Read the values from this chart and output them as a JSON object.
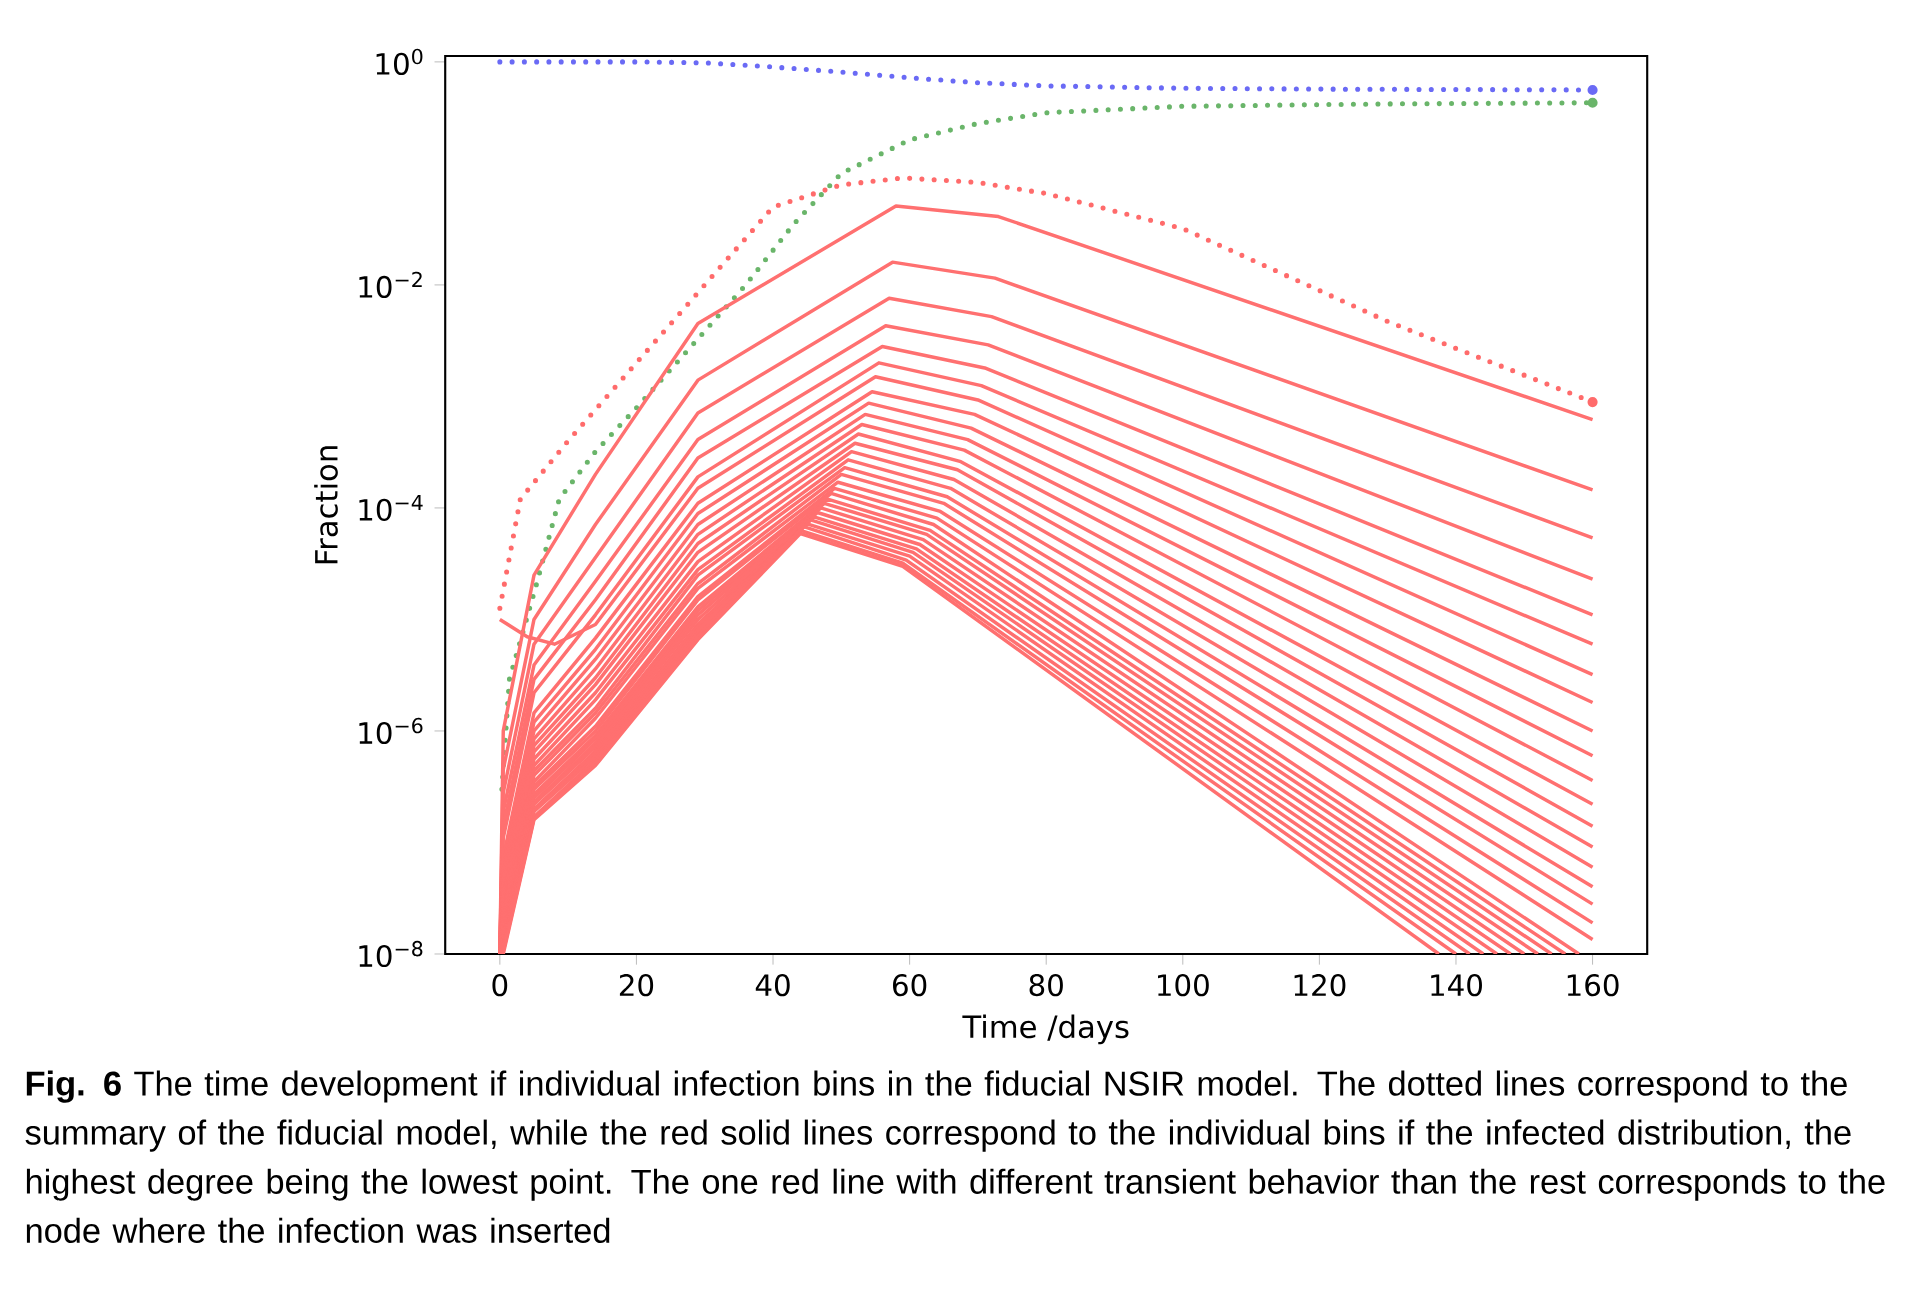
{
  "chart_data": {
    "type": "line",
    "xlabel": "Time /days",
    "ylabel": "Fraction",
    "log": "y",
    "xlim": [
      -8,
      168
    ],
    "ylim": [
      1e-08,
      1.13
    ],
    "xticks": [
      0,
      20,
      40,
      60,
      80,
      100,
      120,
      140,
      160
    ],
    "yticks": [
      {
        "value": 1e-08,
        "label": "10$^{−8}$"
      },
      {
        "value": 1e-06,
        "label": "10$^{−6}$"
      },
      {
        "value": 0.0001,
        "label": "10$^{−4}$"
      },
      {
        "value": 0.01,
        "label": "10$^{−2}$"
      },
      {
        "value": 1,
        "label": "10$^{0}$"
      }
    ],
    "annotations": [
      "**Fig. 6** The time development if individual infection bins in the fiducial NSIR model. The dotted lines correspond to the summary of the fiducial model, while the red solid lines correspond to the individual bins if the infected distribution, the highest degree being the lowest point. The one red line with different transient behavior than the rest corresponds to the node where the infection was inserted"
    ],
    "series": [
      {
        "color": "#6a6af5",
        "line_style": "dotted",
        "x": [
          0,
          20,
          30,
          40,
          50,
          60,
          70,
          80,
          100,
          120,
          160
        ],
        "values": [
          1,
          1,
          0.98,
          0.9,
          0.81,
          0.72,
          0.65,
          0.61,
          0.58,
          0.57,
          0.56
        ]
      },
      {
        "color": "#6ab56a",
        "line_style": "dotted",
        "x": [
          0.3,
          1.4,
          5.3,
          8.7,
          14,
          20,
          28,
          36,
          43,
          50,
          60,
          70,
          80,
          100,
          130,
          160
        ],
        "values": [
          3e-07,
          2.9e-06,
          2e-05,
          0.00012,
          0.00032,
          0.00079,
          0.0028,
          0.01,
          0.035,
          0.1,
          0.2,
          0.28,
          0.35,
          0.4,
          0.42,
          0.43
        ]
      },
      {
        "color": "#ff6b6b",
        "line_style": "dotted",
        "x": [
          0,
          3,
          10,
          20,
          30,
          40,
          50,
          59,
          70,
          80,
          100,
          130,
          160
        ],
        "values": [
          1.26e-05,
          0.00012,
          0.0004,
          0.002,
          0.01,
          0.05,
          0.079,
          0.091,
          0.083,
          0.066,
          0.032,
          0.0047,
          0.00089
        ]
      },
      {
        "color": "#ff7070",
        "line_style": "solid",
        "x": [
          0,
          0.5,
          5,
          14,
          29,
          58,
          73,
          160
        ],
        "values": [
          1e-08,
          1e-06,
          2.5e-05,
          0.0002,
          0.0045,
          0.051,
          0.041,
          0.00062
        ]
      },
      {
        "color": "#ff7070",
        "line_style": "solid",
        "x": [
          0,
          0.5,
          5,
          14,
          29,
          57.5,
          72.5,
          160
        ],
        "values": [
          1e-08,
          4.5e-07,
          1e-05,
          7.1e-05,
          0.0014,
          0.016,
          0.0115,
          0.000145
        ]
      },
      {
        "color": "#ff7070",
        "line_style": "solid",
        "x": [
          0,
          0.5,
          5,
          14,
          29,
          57,
          72,
          160
        ],
        "values": [
          1e-08,
          2.8e-07,
          6e-06,
          3.6e-05,
          0.00071,
          0.0076,
          0.0052,
          5.4e-05
        ]
      },
      {
        "color": "#ff7070",
        "line_style": "solid",
        "x": [
          0,
          0.5,
          5,
          14,
          29,
          56.5,
          71.5,
          160
        ],
        "values": [
          1e-08,
          1.9e-07,
          3.9e-06,
          2.2e-05,
          0.00041,
          0.0043,
          0.0029,
          2.3e-05
        ]
      },
      {
        "color": "#ff7070",
        "line_style": "solid",
        "x": [
          0,
          0.5,
          5,
          14,
          29,
          56,
          71,
          160
        ],
        "values": [
          1e-08,
          1.4e-07,
          2.9e-06,
          1.5e-05,
          0.00028,
          0.0028,
          0.0018,
          1.1e-05
        ]
      },
      {
        "color": "#ff7070",
        "line_style": "solid",
        "x": [
          0,
          0.5,
          5,
          14,
          29,
          55.5,
          70.5,
          160
        ],
        "values": [
          1e-08,
          1.1e-07,
          2.2e-06,
          1.1e-05,
          0.00019,
          0.002,
          0.00125,
          6e-06
        ]
      },
      {
        "color": "#ff7070",
        "line_style": "solid",
        "x": [
          0,
          4,
          8,
          14,
          29,
          55,
          70,
          160
        ],
        "values": [
          1e-05,
          7e-06,
          6e-06,
          9e-06,
          0.00015,
          0.0015,
          0.00093,
          3.2e-06
        ]
      },
      {
        "color": "#ff7070",
        "line_style": "solid",
        "x": [
          0,
          0.5,
          5,
          14,
          29,
          54.5,
          69.5,
          160
        ],
        "values": [
          1e-08,
          7.4e-08,
          1.45e-06,
          6.8e-06,
          0.00011,
          0.0011,
          0.00069,
          1.8e-06
        ]
      },
      {
        "color": "#ff7070",
        "line_style": "solid",
        "x": [
          0,
          0.5,
          5,
          14,
          29,
          54,
          69,
          160
        ],
        "values": [
          1e-08,
          6.3e-08,
          1.2e-06,
          5.4e-06,
          8.9e-05,
          0.00087,
          0.00052,
          1e-06
        ]
      },
      {
        "color": "#ff7070",
        "line_style": "solid",
        "x": [
          0,
          0.5,
          5,
          14,
          29,
          53.5,
          68.5,
          160
        ],
        "values": [
          1e-08,
          5.4e-08,
          1e-06,
          4.4e-06,
          7.1e-05,
          0.00069,
          0.00041,
          6e-07
        ]
      },
      {
        "color": "#ff7070",
        "line_style": "solid",
        "x": [
          0,
          0.5,
          5,
          14,
          29,
          53,
          68,
          160
        ],
        "values": [
          1e-08,
          4.7e-08,
          8.5e-07,
          3.6e-06,
          5.8e-05,
          0.00056,
          0.00033,
          3.6e-07
        ]
      },
      {
        "color": "#ff7070",
        "line_style": "solid",
        "x": [
          0,
          0.5,
          5,
          14,
          29,
          52.5,
          67.5,
          160
        ],
        "values": [
          1e-08,
          4.1e-08,
          7.4e-07,
          3e-06,
          4.8e-05,
          0.00046,
          0.00026,
          2.2e-07
        ]
      },
      {
        "color": "#ff7070",
        "line_style": "solid",
        "x": [
          0,
          0.5,
          5,
          14,
          29,
          52,
          67,
          160
        ],
        "values": [
          1e-08,
          3.5e-08,
          6.5e-07,
          2.6e-06,
          4e-05,
          0.00038,
          0.00022,
          1.4e-07
        ]
      },
      {
        "color": "#ff7070",
        "line_style": "solid",
        "x": [
          0,
          0.5,
          5,
          14,
          29,
          51.5,
          66.5,
          160
        ],
        "values": [
          1e-08,
          3.2e-08,
          5.6e-07,
          2.2e-06,
          3.3e-05,
          0.00032,
          0.00018,
          9.1e-08
        ]
      },
      {
        "color": "#ff7070",
        "line_style": "solid",
        "x": [
          0,
          0.5,
          5,
          14,
          29,
          51,
          66,
          160
        ],
        "values": [
          1e-08,
          2.8e-08,
          4.9e-07,
          1.9e-06,
          2.8e-05,
          0.00027,
          0.00015,
          6e-08
        ]
      },
      {
        "color": "#ff7070",
        "line_style": "solid",
        "x": [
          0,
          0.5,
          5,
          14,
          29,
          50.5,
          65.5,
          160
        ],
        "values": [
          1e-08,
          2.5e-08,
          4.4e-07,
          1.6e-06,
          2.5e-05,
          0.00023,
          0.000126,
          4e-08
        ]
      },
      {
        "color": "#ff7070",
        "line_style": "solid",
        "x": [
          0,
          0.5,
          5,
          14,
          29,
          50,
          65,
          160
        ],
        "values": [
          1e-08,
          2.3e-08,
          4e-07,
          1.45e-06,
          2.1e-05,
          0.0002,
          0.00011,
          2.8e-08
        ]
      },
      {
        "color": "#ff7070",
        "line_style": "solid",
        "x": [
          0,
          0.5,
          5,
          14,
          29,
          49.5,
          64.5,
          160
        ],
        "values": [
          1e-08,
          2.1e-08,
          3.5e-07,
          1.3e-06,
          1.9e-05,
          0.00017,
          9.3e-05,
          1.9e-08
        ]
      },
      {
        "color": "#ff7070",
        "line_style": "solid",
        "x": [
          0,
          0.5,
          5,
          14,
          29,
          49,
          64,
          160
        ],
        "values": [
          1e-08,
          1.9e-08,
          3.2e-07,
          1.1e-06,
          1.6e-05,
          0.00015,
          8.1e-05,
          1.35e-08
        ]
      },
      {
        "color": "#ff7070",
        "line_style": "solid",
        "x": [
          0,
          0.5,
          5,
          14,
          29,
          48.5,
          63.5,
          158
        ],
        "values": [
          1e-08,
          1.7e-08,
          3e-07,
          1e-06,
          1.5e-05,
          0.000135,
          7.1e-05,
          1e-08
        ]
      },
      {
        "color": "#ff7070",
        "line_style": "solid",
        "x": [
          0,
          0.5,
          5,
          14,
          29,
          48,
          63,
          156
        ],
        "values": [
          1e-08,
          1.6e-08,
          2.7e-07,
          9.1e-07,
          1.3e-05,
          0.00012,
          6.3e-05,
          1e-08
        ]
      },
      {
        "color": "#ff7070",
        "line_style": "solid",
        "x": [
          0,
          0.5,
          5,
          14,
          29,
          47.5,
          62.5,
          154
        ],
        "values": [
          1e-08,
          1.5e-08,
          2.5e-07,
          8.5e-07,
          1.2e-05,
          0.00011,
          5.8e-05,
          1e-08
        ]
      },
      {
        "color": "#ff7070",
        "line_style": "solid",
        "x": [
          0,
          0.5,
          5,
          14,
          29,
          47,
          62,
          152
        ],
        "values": [
          1e-08,
          1.45e-08,
          2.3e-07,
          7.8e-07,
          1.1e-05,
          0.0001,
          5.2e-05,
          1e-08
        ]
      },
      {
        "color": "#ff7070",
        "line_style": "solid",
        "x": [
          0,
          0.5,
          5,
          14,
          29,
          46.5,
          61.5,
          150
        ],
        "values": [
          1e-08,
          1.35e-08,
          2.2e-07,
          7.2e-07,
          1e-05,
          9.1e-05,
          4.7e-05,
          1e-08
        ]
      },
      {
        "color": "#ff7070",
        "line_style": "solid",
        "x": [
          0,
          0.5,
          5,
          14,
          29,
          46,
          61,
          148
        ],
        "values": [
          1e-08,
          1.26e-08,
          2e-07,
          6.6e-07,
          9.1e-06,
          8.3e-05,
          4.3e-05,
          1e-08
        ]
      },
      {
        "color": "#ff7070",
        "line_style": "solid",
        "x": [
          0,
          0.5,
          5,
          14,
          29,
          45.5,
          60.5,
          146
        ],
        "values": [
          1e-08,
          1.2e-08,
          1.95e-07,
          6.3e-07,
          8.7e-06,
          7.8e-05,
          4e-05,
          1e-08
        ]
      },
      {
        "color": "#ff7070",
        "line_style": "solid",
        "x": [
          0,
          0.5,
          5,
          14,
          29,
          45,
          60,
          144
        ],
        "values": [
          1e-08,
          1.15e-08,
          1.9e-07,
          5.9e-07,
          8.1e-06,
          7.2e-05,
          3.7e-05,
          1e-08
        ]
      },
      {
        "color": "#ff7070",
        "line_style": "solid",
        "x": [
          0,
          0.5,
          5,
          14,
          29,
          44.5,
          59.5,
          142
        ],
        "values": [
          1e-08,
          1.1e-08,
          1.7e-07,
          5.5e-07,
          7.6e-06,
          6.8e-05,
          3.4e-05,
          1e-08
        ]
      },
      {
        "color": "#ff7070",
        "line_style": "solid",
        "x": [
          0,
          0.5,
          5,
          14,
          29,
          44,
          59,
          140
        ],
        "values": [
          1e-08,
          1.05e-08,
          1.65e-07,
          5.2e-07,
          7.1e-06,
          6.3e-05,
          3.2e-05,
          1e-08
        ]
      },
      {
        "color": "#ff7070",
        "line_style": "solid",
        "x": [
          0,
          0.5,
          5,
          14,
          29,
          44,
          59,
          137.5
        ],
        "values": [
          1e-08,
          1e-08,
          1.6e-07,
          4.9e-07,
          6.6e-06,
          5.9e-05,
          3e-05,
          1e-08
        ]
      }
    ]
  }
}
